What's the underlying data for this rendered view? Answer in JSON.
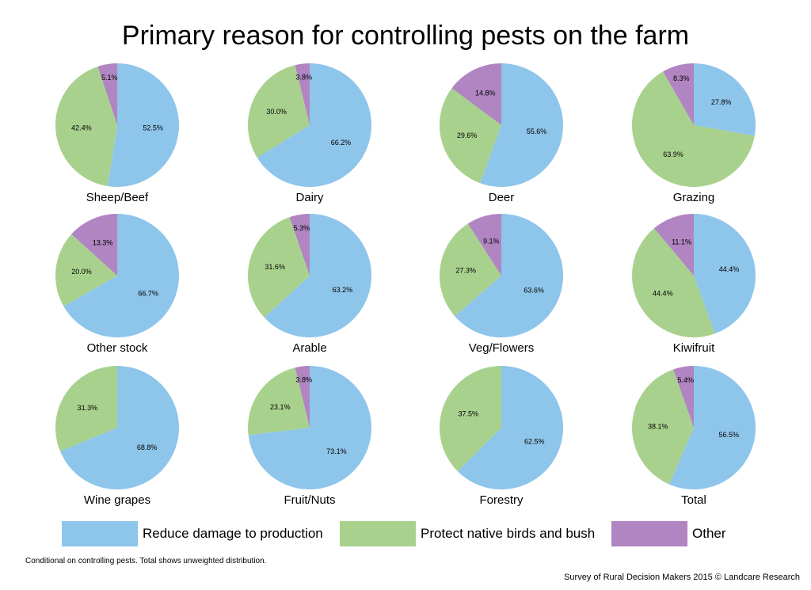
{
  "title": "Primary reason for controlling pests on the farm",
  "footnote": "Conditional on controlling pests. Total shows unweighted distribution.",
  "source": "Survey of Rural Decision Makers 2015 © Landcare Research",
  "colors": {
    "reduce": "#8EC5EA",
    "protect": "#A9D18E",
    "other": "#B085C1"
  },
  "legend": [
    {
      "key": "reduce",
      "label": "Reduce damage to production"
    },
    {
      "key": "protect",
      "label": "Protect native birds and bush"
    },
    {
      "key": "other",
      "label": "Other"
    }
  ],
  "chart_data": [
    {
      "type": "pie",
      "title": "Sheep/Beef",
      "labels": [
        "Reduce damage to production",
        "Protect native birds and bush",
        "Other"
      ],
      "values": [
        52.5,
        42.4,
        5.1
      ],
      "value_labels": [
        "52.5%",
        "42.4%",
        "5.1%"
      ]
    },
    {
      "type": "pie",
      "title": "Dairy",
      "labels": [
        "Reduce damage to production",
        "Protect native birds and bush",
        "Other"
      ],
      "values": [
        66.2,
        30.0,
        3.8
      ],
      "value_labels": [
        "66.2%",
        "30.0%",
        "3.8%"
      ]
    },
    {
      "type": "pie",
      "title": "Deer",
      "labels": [
        "Reduce damage to production",
        "Protect native birds and bush",
        "Other"
      ],
      "values": [
        55.6,
        29.6,
        14.8
      ],
      "value_labels": [
        "55.6%",
        "29.6%",
        "14.8%"
      ]
    },
    {
      "type": "pie",
      "title": "Grazing",
      "labels": [
        "Reduce damage to production",
        "Protect native birds and bush",
        "Other"
      ],
      "values": [
        27.8,
        63.9,
        8.3
      ],
      "value_labels": [
        "27.8%",
        "63.9%",
        "8.3%"
      ]
    },
    {
      "type": "pie",
      "title": "Other stock",
      "labels": [
        "Reduce damage to production",
        "Protect native birds and bush",
        "Other"
      ],
      "values": [
        66.7,
        20.0,
        13.3
      ],
      "value_labels": [
        "66.7%",
        "20.0%",
        "13.3%"
      ]
    },
    {
      "type": "pie",
      "title": "Arable",
      "labels": [
        "Reduce damage to production",
        "Protect native birds and bush",
        "Other"
      ],
      "values": [
        63.2,
        31.6,
        5.3
      ],
      "value_labels": [
        "63.2%",
        "31.6%",
        "5.3%"
      ]
    },
    {
      "type": "pie",
      "title": "Veg/Flowers",
      "labels": [
        "Reduce damage to production",
        "Protect native birds and bush",
        "Other"
      ],
      "values": [
        63.6,
        27.3,
        9.1
      ],
      "value_labels": [
        "63.6%",
        "27.3%",
        "9.1%"
      ]
    },
    {
      "type": "pie",
      "title": "Kiwifruit",
      "labels": [
        "Reduce damage to production",
        "Protect native birds and bush",
        "Other"
      ],
      "values": [
        44.4,
        44.4,
        11.1
      ],
      "value_labels": [
        "44.4%",
        "44.4%",
        "11.1%"
      ]
    },
    {
      "type": "pie",
      "title": "Wine grapes",
      "labels": [
        "Reduce damage to production",
        "Protect native birds and bush",
        "Other"
      ],
      "values": [
        68.8,
        31.3,
        0
      ],
      "value_labels": [
        "68.8%",
        "31.3%",
        ""
      ]
    },
    {
      "type": "pie",
      "title": "Fruit/Nuts",
      "labels": [
        "Reduce damage to production",
        "Protect native birds and bush",
        "Other"
      ],
      "values": [
        73.1,
        23.1,
        3.8
      ],
      "value_labels": [
        "73.1%",
        "23.1%",
        "3.8%"
      ]
    },
    {
      "type": "pie",
      "title": "Forestry",
      "labels": [
        "Reduce damage to production",
        "Protect native birds and bush",
        "Other"
      ],
      "values": [
        62.5,
        37.5,
        0
      ],
      "value_labels": [
        "62.5%",
        "37.5%",
        ""
      ]
    },
    {
      "type": "pie",
      "title": "Total",
      "labels": [
        "Reduce damage to production",
        "Protect native birds and bush",
        "Other"
      ],
      "values": [
        56.5,
        38.1,
        5.4
      ],
      "value_labels": [
        "56.5%",
        "38.1%",
        "5.4%"
      ]
    }
  ]
}
